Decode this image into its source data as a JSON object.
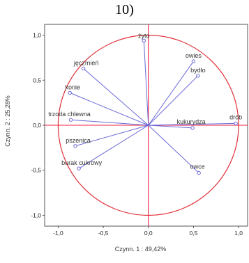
{
  "figure_number": "10)",
  "chart_data": {
    "type": "scatter",
    "title": "",
    "xlabel": "Czynn. 1 : 49,42%",
    "ylabel": "Czynn. 2 : 25,28%",
    "xlim": [
      -1.15,
      1.1
    ],
    "ylim": [
      -1.12,
      1.12
    ],
    "xticks": [
      {
        "v": -1.0,
        "t": "-1,0"
      },
      {
        "v": -0.5,
        "t": "-0,5"
      },
      {
        "v": 0.0,
        "t": "0,0"
      },
      {
        "v": 0.5,
        "t": "0,5"
      },
      {
        "v": 1.0,
        "t": "1,0"
      }
    ],
    "yticks": [
      {
        "v": 1.0,
        "t": "1,0"
      },
      {
        "v": 0.5,
        "t": "0,5"
      },
      {
        "v": 0.0,
        "t": "0,0"
      },
      {
        "v": -0.5,
        "t": "-0,5"
      },
      {
        "v": -1.0,
        "t": "-1,0"
      }
    ],
    "circle_radius": 1.0,
    "colors": {
      "circle": "#e0303a",
      "vectors": "#6a6ad8",
      "axes": "#ee2244",
      "frame": "#555555"
    },
    "points": [
      {
        "label": "żyto",
        "x": -0.05,
        "y": 0.94,
        "anchor": "middle",
        "dx": 0,
        "dy": -4
      },
      {
        "label": "jęczmień",
        "x": -0.72,
        "y": 0.63,
        "anchor": "middle",
        "dx": 4,
        "dy": -5
      },
      {
        "label": "owies",
        "x": 0.5,
        "y": 0.71,
        "anchor": "middle",
        "dx": 0,
        "dy": -5
      },
      {
        "label": "bydło",
        "x": 0.55,
        "y": 0.55,
        "anchor": "middle",
        "dx": 0,
        "dy": -5
      },
      {
        "label": "konie",
        "x": -0.87,
        "y": 0.36,
        "anchor": "middle",
        "dx": 4,
        "dy": -5
      },
      {
        "label": "trzoda chlewna",
        "x": -0.86,
        "y": 0.06,
        "anchor": "middle",
        "dx": -2,
        "dy": -5
      },
      {
        "label": "kukurydza",
        "x": 0.49,
        "y": -0.03,
        "anchor": "middle",
        "dx": -2,
        "dy": -6
      },
      {
        "label": "drób",
        "x": 0.97,
        "y": 0.02,
        "anchor": "middle",
        "dx": 0,
        "dy": -6
      },
      {
        "label": "pszenica",
        "x": -0.81,
        "y": -0.23,
        "anchor": "middle",
        "dx": 4,
        "dy": -5
      },
      {
        "label": "burak cukrowy",
        "x": -0.77,
        "y": -0.48,
        "anchor": "middle",
        "dx": 4,
        "dy": -5
      },
      {
        "label": "owce",
        "x": 0.56,
        "y": -0.53,
        "anchor": "middle",
        "dx": -2,
        "dy": -6
      }
    ]
  }
}
